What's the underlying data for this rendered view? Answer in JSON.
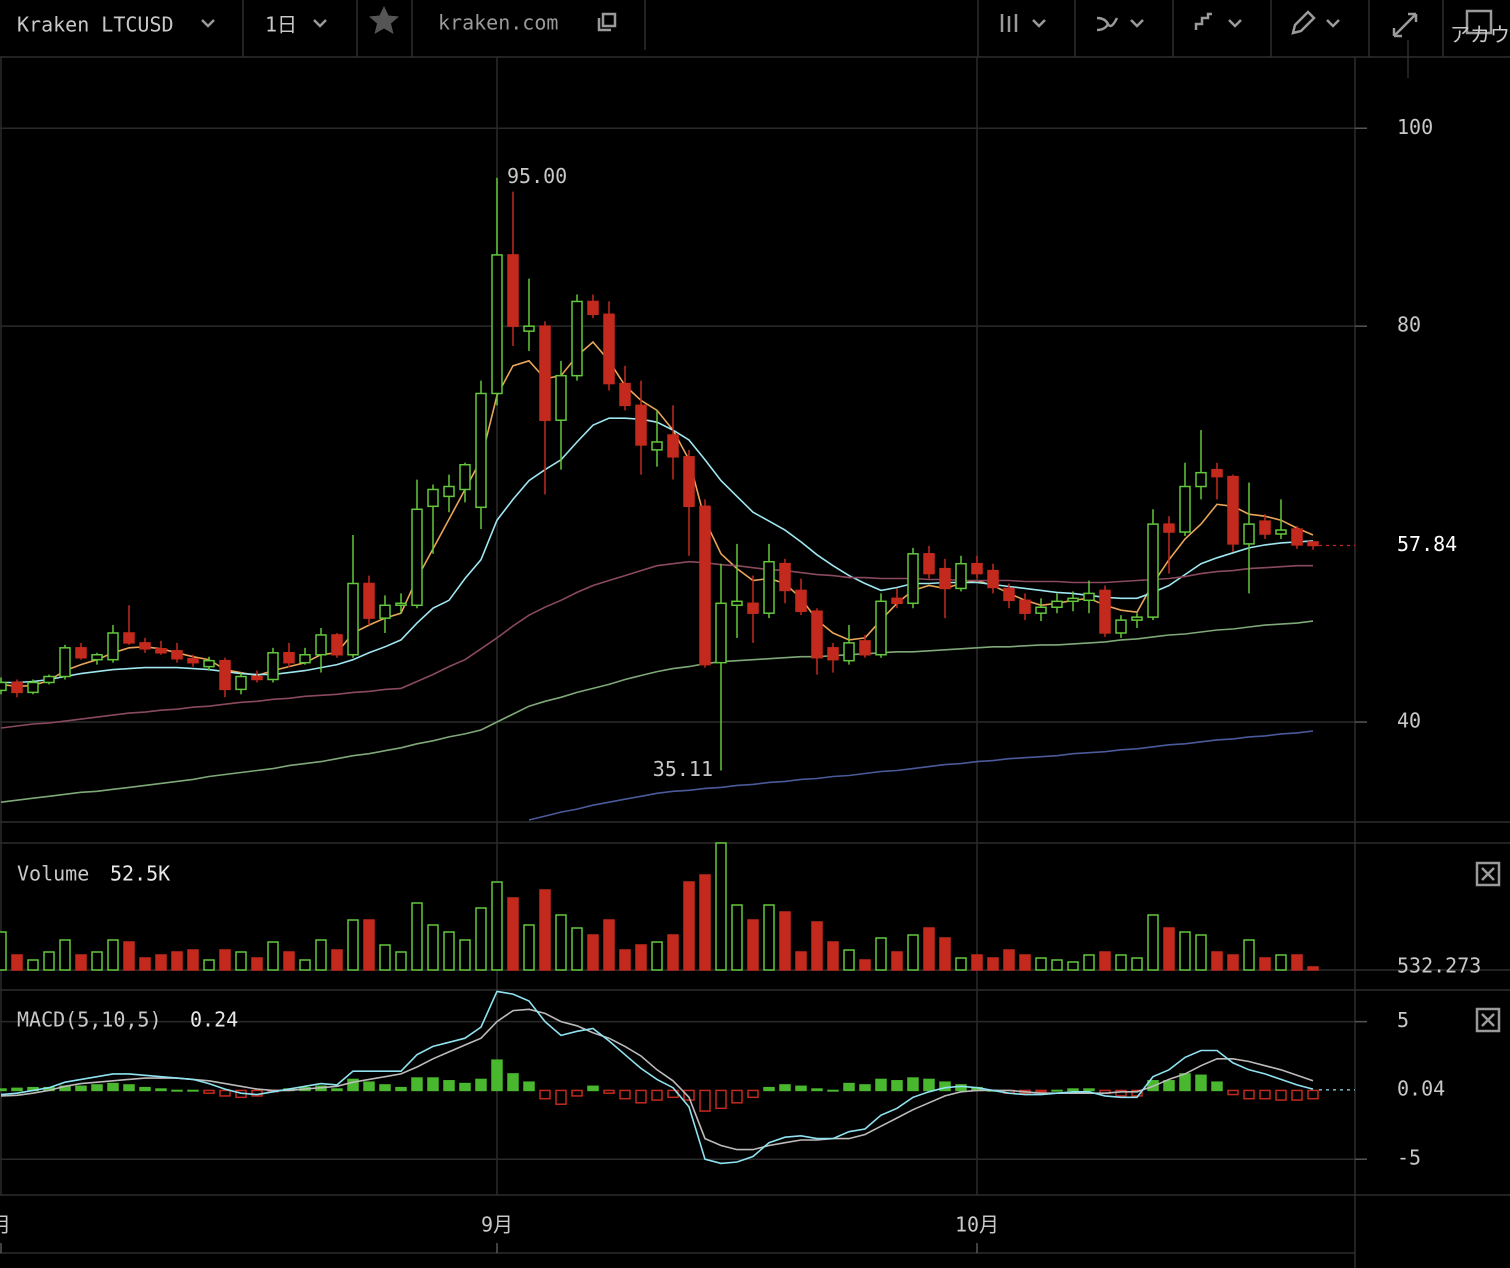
{
  "toolbar": {
    "symbol": "Kraken LTCUSD",
    "interval": "1日",
    "source": "kraken.com",
    "account": "アカウ"
  },
  "chart_data": [
    {
      "type": "candlestick",
      "open": [
        43.2,
        44.0,
        43.0,
        44.0,
        44.6,
        47.5,
        46.3,
        46.3,
        49.0,
        48.0,
        47.4,
        47.2,
        46.4,
        45.6,
        46.2,
        43.3,
        44.6,
        44.3,
        47.0,
        46.0,
        46.8,
        48.8,
        46.8,
        54.0,
        50.5,
        51.8,
        51.8,
        61.8,
        62.8,
        63.5,
        61.7,
        73.2,
        87.2,
        79.5,
        80.0,
        70.5,
        75.0,
        82.5,
        81.2,
        74.2,
        72.0,
        67.5,
        69.0,
        66.8,
        61.8,
        46.0,
        51.8,
        52.0,
        51.0,
        56.0,
        53.3,
        51.2,
        47.5,
        46.2,
        48.2,
        46.8,
        52.5,
        52.0,
        57.0,
        55.5,
        53.5,
        56.0,
        55.3,
        53.5,
        52.3,
        51.0,
        51.6,
        52.2,
        52.3,
        53.3,
        49.0,
        50.3,
        50.6,
        60.0,
        59.2,
        63.8,
        65.5,
        64.8,
        58.0,
        60.3,
        59.0,
        59.5,
        58.2
      ],
      "high": [
        44.5,
        44.3,
        44.3,
        44.8,
        47.8,
        48.0,
        47.0,
        49.8,
        51.8,
        48.5,
        48.2,
        48.0,
        46.8,
        46.6,
        46.5,
        45.0,
        45.2,
        47.5,
        48.0,
        47.5,
        49.5,
        49.0,
        58.9,
        54.8,
        52.8,
        53.0,
        64.5,
        64.0,
        65.0,
        66.2,
        74.5,
        95.0,
        93.6,
        84.8,
        80.5,
        76.5,
        83.2,
        83.2,
        82.5,
        76.0,
        74.5,
        71.5,
        72.0,
        67.5,
        62.5,
        56.0,
        58.0,
        54.8,
        58.0,
        56.5,
        54.5,
        51.5,
        48.0,
        49.8,
        48.8,
        53.0,
        53.5,
        57.6,
        57.8,
        56.5,
        56.8,
        56.8,
        56.0,
        54.0,
        53.0,
        52.5,
        53.0,
        53.2,
        54.3,
        53.8,
        50.8,
        51.0,
        61.5,
        60.8,
        66.2,
        69.5,
        66.2,
        65.0,
        64.2,
        61.0,
        62.5,
        59.8,
        58.3
      ],
      "low": [
        42.8,
        42.5,
        42.8,
        43.8,
        44.3,
        46.3,
        45.8,
        46.0,
        47.8,
        47.0,
        46.8,
        46.0,
        45.6,
        45.2,
        42.5,
        42.8,
        44.0,
        44.0,
        45.5,
        45.8,
        45.0,
        46.5,
        46.5,
        49.8,
        49.0,
        51.0,
        51.5,
        57.0,
        61.2,
        62.2,
        59.5,
        72.0,
        78.0,
        77.5,
        63.0,
        65.5,
        74.5,
        80.8,
        73.5,
        71.5,
        65.0,
        65.8,
        64.5,
        56.8,
        45.5,
        35.11,
        48.5,
        48.0,
        50.5,
        52.0,
        50.8,
        44.8,
        45.0,
        45.8,
        46.5,
        46.5,
        51.5,
        51.5,
        54.5,
        50.5,
        53.2,
        54.5,
        53.0,
        51.5,
        50.3,
        50.2,
        51.0,
        51.2,
        51.0,
        48.6,
        48.5,
        49.5,
        50.3,
        55.0,
        58.8,
        62.5,
        62.5,
        57.2,
        53.0,
        58.5,
        58.5,
        57.5,
        57.4
      ],
      "close": [
        44.0,
        43.0,
        44.0,
        44.6,
        47.5,
        46.5,
        46.8,
        49.0,
        48.0,
        47.4,
        47.0,
        46.4,
        46.0,
        46.2,
        43.3,
        44.6,
        44.3,
        47.0,
        46.0,
        46.8,
        48.8,
        46.8,
        54.0,
        50.5,
        51.8,
        52.0,
        61.5,
        63.5,
        63.8,
        66.0,
        73.2,
        87.2,
        80.0,
        80.0,
        70.5,
        75.0,
        82.5,
        81.2,
        74.2,
        72.0,
        68.0,
        68.3,
        66.8,
        61.8,
        45.8,
        52.0,
        52.2,
        51.0,
        56.2,
        53.3,
        51.2,
        46.5,
        46.3,
        48.0,
        46.8,
        52.2,
        52.0,
        57.0,
        55.0,
        53.5,
        56.0,
        55.0,
        53.6,
        52.3,
        51.0,
        51.6,
        52.2,
        52.5,
        53.0,
        49.0,
        50.3,
        50.6,
        60.0,
        59.2,
        63.8,
        65.2,
        64.8,
        58.0,
        60.0,
        59.0,
        59.4,
        57.9,
        57.84
      ],
      "up_color": "#62c83a",
      "down_color": "#c32a1d",
      "high_label": "95.00",
      "ylim": [
        29.9,
        107.2
      ],
      "yticks": [
        40,
        80,
        100
      ],
      "grid": true,
      "series": [
        {
          "color": "#e8a45a",
          "values": [
            43.8,
            43.6,
            43.7,
            44.2,
            45.2,
            45.8,
            46.3,
            47.0,
            47.5,
            47.6,
            47.4,
            47.0,
            46.6,
            46.3,
            45.3,
            45.0,
            44.7,
            45.2,
            45.6,
            46.0,
            46.8,
            47.0,
            49.0,
            49.8,
            50.5,
            51.0,
            54.5,
            57.5,
            60.5,
            63.5,
            66.5,
            73.0,
            76.0,
            76.5,
            74.7,
            75.0,
            77.0,
            78.4,
            76.5,
            74.0,
            72.5,
            71.5,
            69.5,
            66.5,
            60.4,
            57.0,
            55.5,
            54.3,
            54.5,
            54.0,
            52.5,
            50.3,
            49.0,
            48.3,
            48.5,
            50.3,
            52.0,
            53.3,
            53.8,
            53.5,
            54.0,
            54.3,
            53.8,
            53.0,
            52.3,
            51.8,
            52.0,
            52.3,
            52.5,
            51.8,
            51.3,
            51.1,
            54.0,
            56.4,
            58.5,
            60.0,
            62.0,
            61.8,
            61.0,
            60.8,
            60.4,
            59.6,
            58.9
          ]
        },
        {
          "color": "#9ee6f0",
          "values": [
            44.0,
            44.0,
            44.1,
            44.3,
            44.6,
            44.9,
            45.1,
            45.3,
            45.4,
            45.5,
            45.5,
            45.5,
            45.4,
            45.3,
            45.1,
            44.9,
            44.8,
            44.8,
            45.0,
            45.2,
            45.5,
            45.8,
            46.3,
            47.0,
            47.6,
            48.3,
            50.0,
            51.5,
            52.3,
            54.5,
            56.4,
            60.4,
            62.5,
            64.4,
            65.5,
            66.5,
            68.3,
            70.0,
            70.7,
            70.7,
            70.6,
            70.3,
            69.5,
            68.5,
            66.5,
            64.4,
            62.8,
            61.2,
            60.3,
            59.4,
            58.2,
            56.9,
            55.8,
            54.8,
            54.0,
            53.3,
            53.6,
            54.0,
            54.0,
            54.1,
            54.1,
            54.1,
            53.9,
            53.7,
            53.5,
            53.3,
            53.1,
            53.0,
            52.8,
            52.6,
            52.5,
            52.5,
            53.1,
            53.8,
            54.9,
            56.0,
            56.6,
            57.1,
            57.6,
            57.9,
            58.1,
            58.2,
            58.3
          ]
        },
        {
          "color": "#8a4a5e",
          "values": [
            39.4,
            39.6,
            39.8,
            39.9,
            40.1,
            40.3,
            40.5,
            40.7,
            40.9,
            41.0,
            41.2,
            41.3,
            41.5,
            41.6,
            41.8,
            42.0,
            42.1,
            42.3,
            42.4,
            42.6,
            42.7,
            42.8,
            43.0,
            43.1,
            43.3,
            43.4,
            44.1,
            44.8,
            45.6,
            46.3,
            47.4,
            48.5,
            49.7,
            50.8,
            51.6,
            52.3,
            53.1,
            53.8,
            54.3,
            54.8,
            55.3,
            55.8,
            56.0,
            56.2,
            56.1,
            55.9,
            55.8,
            55.6,
            55.4,
            55.3,
            55.1,
            54.9,
            54.8,
            54.6,
            54.6,
            54.5,
            54.5,
            54.5,
            54.4,
            54.4,
            54.3,
            54.3,
            54.3,
            54.3,
            54.2,
            54.2,
            54.2,
            54.1,
            54.1,
            54.1,
            54.2,
            54.3,
            54.4,
            54.5,
            54.7,
            55.0,
            55.2,
            55.3,
            55.5,
            55.6,
            55.7,
            55.8,
            55.8
          ]
        },
        {
          "color": "#7fa878",
          "values": [
            31.9,
            32.1,
            32.3,
            32.5,
            32.7,
            32.9,
            33.0,
            33.2,
            33.4,
            33.6,
            33.8,
            34.0,
            34.2,
            34.5,
            34.7,
            34.9,
            35.1,
            35.3,
            35.6,
            35.8,
            36.0,
            36.3,
            36.6,
            36.8,
            37.1,
            37.4,
            37.8,
            38.1,
            38.5,
            38.8,
            39.2,
            40.0,
            40.8,
            41.6,
            42.1,
            42.5,
            43.0,
            43.4,
            43.8,
            44.3,
            44.7,
            45.1,
            45.4,
            45.6,
            45.9,
            46.1,
            46.2,
            46.3,
            46.4,
            46.5,
            46.6,
            46.6,
            46.7,
            46.8,
            46.9,
            47.0,
            47.1,
            47.1,
            47.2,
            47.3,
            47.4,
            47.5,
            47.6,
            47.6,
            47.7,
            47.8,
            47.8,
            47.9,
            48.0,
            48.1,
            48.3,
            48.4,
            48.6,
            48.8,
            48.9,
            49.1,
            49.3,
            49.4,
            49.6,
            49.8,
            49.9,
            50.0,
            50.2
          ]
        },
        {
          "color": "#4a5a9a",
          "values": [
            null,
            null,
            null,
            null,
            null,
            null,
            null,
            null,
            null,
            null,
            null,
            null,
            null,
            null,
            null,
            null,
            null,
            null,
            null,
            null,
            null,
            null,
            null,
            null,
            null,
            null,
            null,
            null,
            null,
            null,
            null,
            null,
            null,
            30.1,
            30.5,
            30.9,
            31.2,
            31.6,
            31.9,
            32.2,
            32.5,
            32.8,
            33.0,
            33.1,
            33.3,
            33.4,
            33.6,
            33.7,
            33.9,
            34.0,
            34.2,
            34.3,
            34.5,
            34.6,
            34.8,
            35.0,
            35.1,
            35.3,
            35.5,
            35.7,
            35.8,
            36.0,
            36.1,
            36.3,
            36.4,
            36.5,
            36.6,
            36.8,
            36.9,
            37.0,
            37.2,
            37.3,
            37.5,
            37.7,
            37.8,
            38.0,
            38.2,
            38.3,
            38.5,
            38.6,
            38.8,
            38.9,
            39.1
          ]
        }
      ]
    },
    {
      "type": "bar",
      "title": "Volume",
      "value_label": "52.5K",
      "ma_label": "532.273",
      "values": [
        665,
        262.5,
        175,
        315,
        525,
        262.5,
        315,
        525,
        490,
        210,
        262.5,
        315,
        350,
        175,
        350,
        315,
        210,
        490,
        315,
        175,
        525,
        350,
        875,
        875,
        437.5,
        315,
        1172.5,
        787.5,
        665,
        525,
        1085,
        1540,
        1260,
        787.5,
        1400,
        962.5,
        735,
        612.5,
        875,
        350,
        437.5,
        490,
        612.5,
        1540,
        1662.5,
        2222.5,
        1137.5,
        875,
        1137.5,
        1015,
        315,
        840,
        490,
        350,
        175,
        560,
        315,
        612.5,
        735,
        560,
        210,
        262.5,
        210,
        350,
        262.5,
        210,
        175,
        140,
        262.5,
        315,
        262.5,
        210,
        962.5,
        735,
        665,
        612.5,
        315,
        262.5,
        525,
        210,
        262.5,
        262.5,
        52.5
      ],
      "ylim": [
        0,
        2222.5
      ]
    },
    {
      "type": "macd",
      "title": "MACD(5,10,5)",
      "current": 0.24,
      "last_value": 0.04,
      "macd": {
        "color": "#8fe3f0",
        "values": [
          -0.3,
          -0.2,
          0,
          0.2,
          0.6,
          0.8,
          1.0,
          1.2,
          1.2,
          1.1,
          1.0,
          0.9,
          0.8,
          0.5,
          0.1,
          -0.2,
          -0.3,
          -0.1,
          0.1,
          0.3,
          0.5,
          0.4,
          1.4,
          1.4,
          1.4,
          1.4,
          2.6,
          3.2,
          3.5,
          3.8,
          4.6,
          7.2,
          7.0,
          6.5,
          5.0,
          4.0,
          4.3,
          4.5,
          3.6,
          2.6,
          1.6,
          0.8,
          0.2,
          -1.2,
          -5.0,
          -5.3,
          -5.2,
          -4.8,
          -3.8,
          -3.4,
          -3.3,
          -3.5,
          -3.5,
          -3.0,
          -2.8,
          -1.8,
          -1.3,
          -0.5,
          -0.1,
          0.2,
          0.3,
          0.2,
          0,
          -0.2,
          -0.3,
          -0.3,
          -0.2,
          -0.1,
          -0.1,
          -0.4,
          -0.5,
          -0.5,
          1.0,
          1.5,
          2.4,
          2.9,
          2.9,
          2.0,
          1.5,
          1.2,
          0.8,
          0.4,
          0.1
        ]
      },
      "signal": {
        "color": "#bbbbbb",
        "values": [
          -0.4,
          -0.35,
          -0.2,
          0,
          0.3,
          0.5,
          0.6,
          0.7,
          0.8,
          0.9,
          0.9,
          0.9,
          0.8,
          0.7,
          0.5,
          0.3,
          0.1,
          0,
          0,
          0.1,
          0.2,
          0.3,
          0.6,
          0.8,
          1.0,
          1.2,
          1.7,
          2.3,
          2.8,
          3.3,
          3.8,
          5.0,
          5.8,
          5.9,
          5.6,
          5.0,
          4.7,
          4.2,
          3.8,
          3.2,
          2.5,
          1.5,
          0.7,
          -0.5,
          -3.5,
          -4.0,
          -4.3,
          -4.3,
          -4.0,
          -3.8,
          -3.6,
          -3.6,
          -3.5,
          -3.5,
          -3.2,
          -2.6,
          -2.0,
          -1.4,
          -0.9,
          -0.4,
          -0.1,
          0,
          0,
          0,
          -0.1,
          -0.2,
          -0.2,
          -0.2,
          -0.2,
          -0.2,
          -0.1,
          -0.1,
          0.3,
          0.8,
          1.2,
          1.8,
          2.3,
          2.3,
          2.1,
          1.8,
          1.5,
          1.1,
          0.7
        ]
      },
      "histogram": {
        "up_color": "#4ab82e",
        "down_color": "#c32a1d",
        "values": [
          0.1,
          0.15,
          0.2,
          0.2,
          0.3,
          0.3,
          0.4,
          0.5,
          0.4,
          0.2,
          0.1,
          0,
          0,
          -0.2,
          -0.4,
          -0.5,
          -0.4,
          -0.1,
          0.1,
          0.2,
          0.3,
          0.1,
          0.8,
          0.6,
          0.4,
          0.2,
          0.9,
          0.9,
          0.7,
          0.5,
          0.8,
          2.2,
          1.2,
          0.6,
          -0.6,
          -1.0,
          -0.4,
          0.3,
          -0.2,
          -0.6,
          -0.9,
          -0.7,
          -0.5,
          -0.7,
          -1.5,
          -1.3,
          -0.9,
          -0.5,
          0.2,
          0.4,
          0.3,
          0.1,
          0,
          0.5,
          0.4,
          0.8,
          0.7,
          0.9,
          0.8,
          0.6,
          0.4,
          0.2,
          0,
          -0.2,
          -0.2,
          -0.1,
          0,
          0.1,
          0.1,
          -0.2,
          -0.4,
          -0.4,
          0.7,
          0.7,
          1.2,
          1.1,
          0.6,
          -0.3,
          -0.6,
          -0.6,
          -0.7,
          -0.7,
          -0.6
        ]
      },
      "ylim": [
        -7.6,
        7.3
      ],
      "yticks": [
        5,
        -5
      ],
      "xticks": [
        {
          "value": 0,
          "label": "月"
        },
        {
          "value": 31,
          "label": "9月"
        },
        {
          "value": 61,
          "label": "10月"
        }
      ]
    }
  ]
}
